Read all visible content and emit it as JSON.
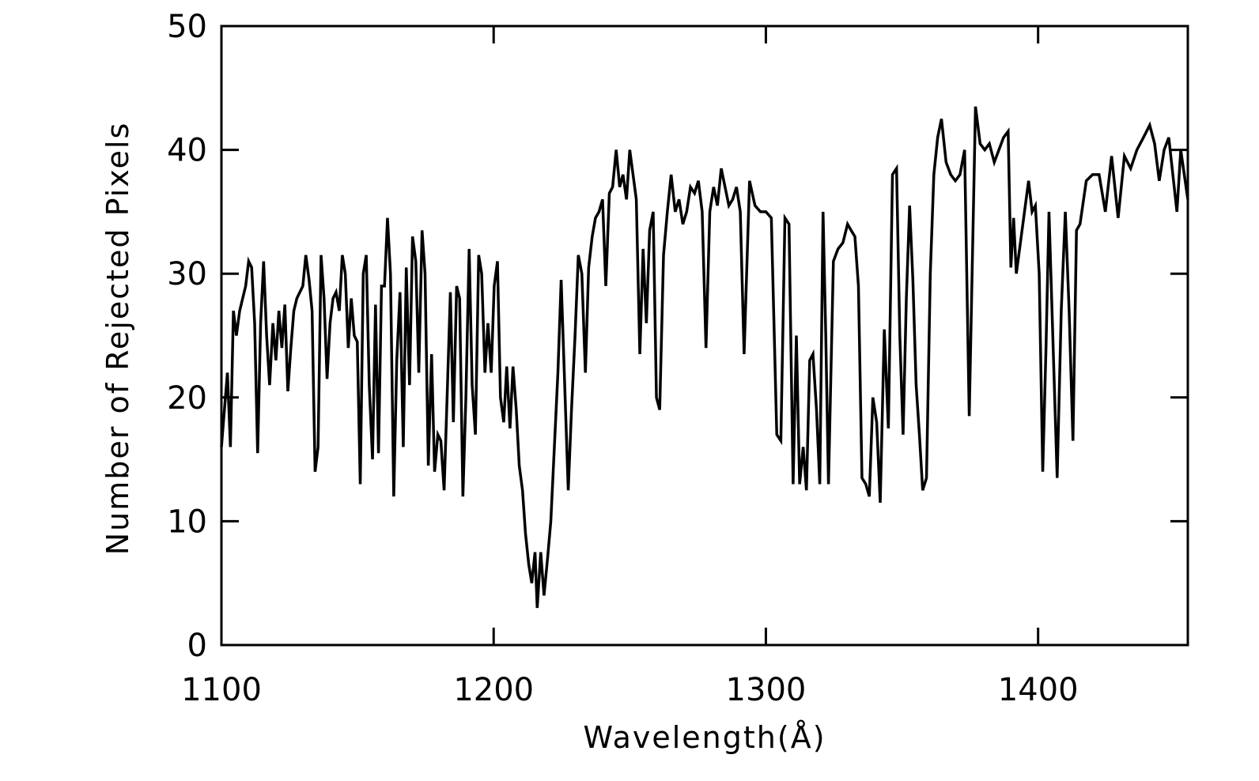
{
  "chart_data": {
    "type": "line",
    "xlabel": "Wavelength(Å)",
    "ylabel": "Number of Rejected Pixels",
    "color": "#000000",
    "xlim": [
      1100,
      1455
    ],
    "xticks": [
      1100,
      1200,
      1300,
      1400
    ],
    "ylim": [
      0,
      50
    ],
    "yticks": [
      0,
      10,
      20,
      30,
      40,
      50
    ],
    "x": [
      1100,
      1102.2,
      1103.3,
      1104.4,
      1105.5,
      1106.7,
      1108.9,
      1110,
      1111.1,
      1112.2,
      1113.3,
      1114.4,
      1115.5,
      1116.6,
      1117.7,
      1118.9,
      1120,
      1121.1,
      1122.2,
      1123.3,
      1124.4,
      1125.5,
      1126.6,
      1127.7,
      1129.9,
      1131,
      1132.2,
      1133.3,
      1134.4,
      1135.5,
      1136.6,
      1137.7,
      1138.8,
      1139.9,
      1141,
      1142.1,
      1143.3,
      1144.4,
      1145.5,
      1146.6,
      1147.7,
      1148.8,
      1149.9,
      1151,
      1152.1,
      1153.2,
      1154.3,
      1155.5,
      1156.6,
      1157.7,
      1158.8,
      1159.9,
      1161,
      1162.1,
      1163.3,
      1164.4,
      1165.6,
      1166.8,
      1167.9,
      1169.1,
      1170.2,
      1171.4,
      1172.5,
      1173.7,
      1174.8,
      1176,
      1177.2,
      1178.3,
      1179.5,
      1180.6,
      1181.8,
      1182.9,
      1184.1,
      1185.2,
      1186.4,
      1187.5,
      1188.7,
      1189.8,
      1191,
      1192.1,
      1193.3,
      1194.5,
      1195.6,
      1196.8,
      1197.9,
      1199.1,
      1200.2,
      1201.4,
      1202.5,
      1203.7,
      1204.8,
      1206,
      1207.1,
      1208.3,
      1209.4,
      1210.6,
      1211.7,
      1212.9,
      1214,
      1215.2,
      1216,
      1217.3,
      1218.5,
      1219.8,
      1221,
      1222.3,
      1223.6,
      1224.8,
      1226.1,
      1227.4,
      1228.6,
      1229.9,
      1231.1,
      1232.4,
      1233.7,
      1234.9,
      1236.2,
      1237.4,
      1238.7,
      1240,
      1241.2,
      1242.5,
      1243.7,
      1245,
      1246.3,
      1247.5,
      1248.8,
      1250,
      1251.2,
      1252.4,
      1253.7,
      1254.9,
      1256.1,
      1257.3,
      1258.6,
      1259.8,
      1261,
      1262.4,
      1263.8,
      1265.2,
      1266.7,
      1268.1,
      1269.5,
      1270.9,
      1272.3,
      1273.8,
      1275.2,
      1276.6,
      1278,
      1279.4,
      1280.8,
      1282.2,
      1283.6,
      1285,
      1286.4,
      1287.8,
      1289.2,
      1290.6,
      1292,
      1294,
      1296,
      1298,
      1300,
      1302,
      1304,
      1305.5,
      1307,
      1308.5,
      1310,
      1311.2,
      1312.4,
      1313.7,
      1314.9,
      1316.1,
      1317.3,
      1318.6,
      1319.8,
      1321,
      1322,
      1323,
      1324.8,
      1326.5,
      1328.3,
      1330,
      1331.3,
      1332.7,
      1334,
      1335.3,
      1336.7,
      1338,
      1339.3,
      1340.7,
      1342,
      1343.5,
      1345,
      1346.5,
      1348,
      1349.2,
      1350.4,
      1351.6,
      1352.8,
      1354,
      1355.2,
      1356.4,
      1357.6,
      1359,
      1360.4,
      1361.7,
      1363.1,
      1364.5,
      1366.2,
      1367.9,
      1369.6,
      1371.3,
      1373,
      1374.7,
      1377,
      1378.7,
      1380.4,
      1382.1,
      1383.9,
      1385.6,
      1387.3,
      1389,
      1390,
      1391,
      1392,
      1396.5,
      1397.8,
      1399,
      1400.4,
      1401.7,
      1402.9,
      1404,
      1407,
      1408.5,
      1410,
      1411.4,
      1412.8,
      1414.1,
      1415.4,
      1417.7,
      1420,
      1422.4,
      1424.7,
      1427,
      1429.4,
      1431.7,
      1434,
      1436.3,
      1438.7,
      1441,
      1442.8,
      1444.5,
      1446.3,
      1448,
      1451,
      1452.4,
      1455
    ],
    "values": [
      16,
      22,
      16,
      27,
      25,
      27,
      29,
      31,
      30.5,
      26,
      15.5,
      26,
      31,
      25,
      21,
      26,
      23,
      27,
      24,
      27.5,
      20.5,
      24,
      27,
      28,
      29,
      31.5,
      29.5,
      27,
      14,
      16,
      31.5,
      28,
      21.5,
      26,
      28,
      28.5,
      27,
      31.5,
      30,
      24,
      28,
      25,
      24.5,
      13,
      30,
      31.5,
      21,
      15,
      27.5,
      15.5,
      29,
      29,
      34.5,
      30,
      12,
      23,
      28.5,
      16,
      30.5,
      21,
      33,
      31,
      22,
      33.5,
      30,
      14.5,
      23.5,
      14,
      17,
      16.5,
      12.5,
      20,
      28.5,
      18,
      29,
      28,
      12,
      20,
      32,
      21,
      17,
      31.5,
      30,
      22,
      26,
      22,
      29,
      31,
      20,
      18,
      22.5,
      17.5,
      22.5,
      19,
      14.5,
      12.5,
      9,
      6.5,
      5,
      7.5,
      3,
      7.5,
      4,
      7,
      10,
      16,
      22,
      29.5,
      21,
      12.5,
      19,
      25,
      31.5,
      30,
      22,
      30.5,
      33,
      34.5,
      35,
      36,
      29,
      36.5,
      37,
      40,
      37,
      38,
      36,
      40,
      38,
      36,
      23.5,
      32,
      26,
      33.5,
      35,
      20,
      19,
      31.5,
      35,
      38,
      35,
      36,
      34,
      35,
      37,
      36.5,
      37.5,
      35,
      24,
      35,
      37,
      35.5,
      38.5,
      37,
      35.5,
      36,
      37,
      35,
      23.5,
      37.5,
      35.5,
      35,
      35,
      34.5,
      17,
      16.5,
      34.5,
      34,
      13,
      25,
      13,
      16,
      12.5,
      23,
      23.5,
      19,
      13,
      35,
      25,
      13,
      31,
      32,
      32.5,
      34,
      33.5,
      33,
      29,
      13.5,
      13,
      12,
      20,
      18,
      11.5,
      25.5,
      17.5,
      38,
      38.5,
      25,
      17,
      28,
      35.5,
      29.5,
      21,
      17,
      12.5,
      13.5,
      30,
      38,
      41,
      42.5,
      39,
      38,
      37.5,
      38,
      40,
      18.5,
      43.5,
      40.5,
      40,
      40.5,
      39,
      40,
      41,
      41.5,
      30.5,
      34.5,
      30,
      37.5,
      35,
      35.5,
      30,
      14,
      24,
      35,
      13.5,
      27,
      35,
      27,
      16.5,
      33.5,
      34,
      37.5,
      38,
      38,
      35,
      39.5,
      34.5,
      39.5,
      38.5,
      40,
      41,
      42,
      40.5,
      37.5,
      40,
      41,
      35,
      40,
      36
    ]
  }
}
